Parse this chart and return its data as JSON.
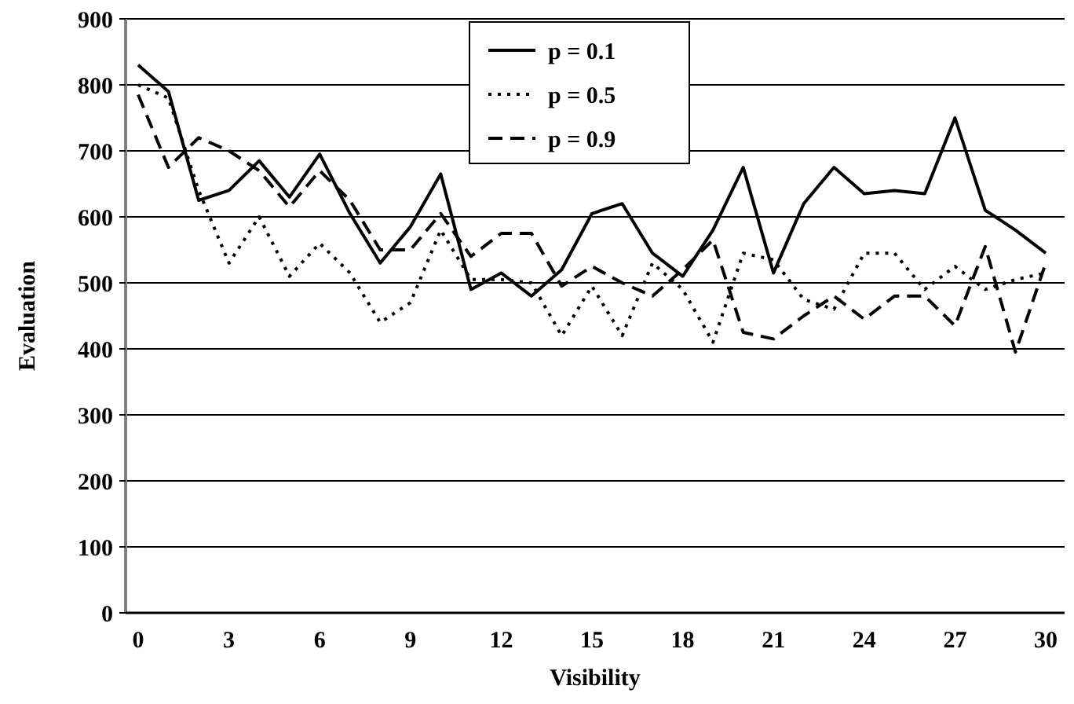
{
  "chart_data": {
    "type": "line",
    "xlabel": "Visibility",
    "ylabel": "Evaluation",
    "categories": [
      "0",
      null,
      null,
      "3",
      null,
      null,
      "6",
      null,
      null,
      "9",
      null,
      null,
      "12",
      null,
      null,
      "15",
      null,
      null,
      "18",
      null,
      null,
      "21",
      null,
      null,
      "24",
      null,
      null,
      "27",
      null,
      null,
      "30"
    ],
    "ylim": [
      0,
      900
    ],
    "yticks": [
      0,
      100,
      200,
      300,
      400,
      500,
      600,
      700,
      800,
      900
    ],
    "grid": "y",
    "legend": "top",
    "series": [
      {
        "name": "p = 0.1",
        "color": "#000000",
        "line_style": "solid",
        "values": [
          830,
          790,
          625,
          640,
          685,
          630,
          695,
          605,
          530,
          585,
          665,
          490,
          515,
          480,
          520,
          605,
          620,
          545,
          510,
          580,
          675,
          515,
          620,
          675,
          635,
          640,
          635,
          750,
          610,
          580,
          545
        ]
      },
      {
        "name": "p = 0.5",
        "color": "#000000",
        "line_style": "dotted",
        "values": [
          800,
          780,
          640,
          530,
          600,
          510,
          560,
          515,
          440,
          470,
          580,
          505,
          505,
          500,
          420,
          495,
          420,
          530,
          490,
          410,
          545,
          535,
          475,
          460,
          545,
          545,
          490,
          525,
          490,
          505,
          515
        ]
      },
      {
        "name": "p = 0.9",
        "color": "#000000",
        "line_style": "dashed",
        "values": [
          785,
          675,
          720,
          700,
          670,
          615,
          670,
          625,
          550,
          550,
          605,
          540,
          575,
          575,
          495,
          525,
          500,
          480,
          520,
          565,
          425,
          415,
          450,
          480,
          445,
          480,
          480,
          435,
          555,
          395,
          530
        ]
      }
    ]
  }
}
